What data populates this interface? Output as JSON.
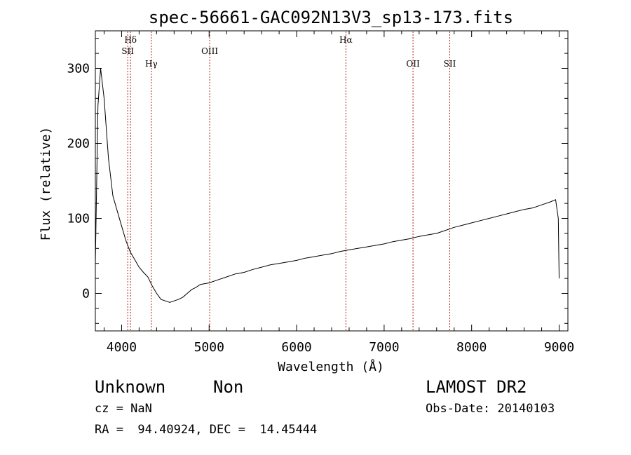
{
  "chart_data": {
    "type": "line",
    "title": "spec-56661-GAC092N13V3_sp13-173.fits",
    "xlabel": "Wavelength (Å)",
    "ylabel": "Flux (relative)",
    "xlim": [
      3700,
      9100
    ],
    "ylim": [
      -50,
      350
    ],
    "x_ticks": [
      4000,
      5000,
      6000,
      7000,
      8000,
      9000
    ],
    "y_ticks": [
      0,
      100,
      200,
      300
    ],
    "line_color": "#000000",
    "marker_color": "#b22222",
    "lines": [
      {
        "label": "Hδ",
        "x": 4102
      },
      {
        "label": "SII",
        "x": 4070
      },
      {
        "label": "Hγ",
        "x": 4340
      },
      {
        "label": "OIII",
        "x": 5007
      },
      {
        "label": "Hα",
        "x": 6563
      },
      {
        "label": "OII",
        "x": 7330
      },
      {
        "label": "SII",
        "x": 7750
      }
    ],
    "series": [
      {
        "x": [
          3700,
          3730,
          3760,
          3800,
          3850,
          3900,
          3950,
          4000,
          4050,
          4100,
          4150,
          4200,
          4250,
          4300,
          4350,
          4400,
          4450,
          4500,
          4550,
          4600,
          4650,
          4700,
          4750,
          4800,
          4850,
          4900,
          5000,
          5100,
          5200,
          5300,
          5400,
          5500,
          5600,
          5700,
          5800,
          5900,
          6000,
          6100,
          6200,
          6300,
          6400,
          6500,
          6600,
          6700,
          6800,
          6900,
          7000,
          7100,
          7200,
          7300,
          7400,
          7500,
          7600,
          7700,
          7800,
          7900,
          8000,
          8100,
          8200,
          8300,
          8400,
          8500,
          8600,
          8700,
          8800,
          8900,
          8960,
          8990,
          9000
        ],
        "y": [
          40,
          250,
          300,
          260,
          180,
          130,
          110,
          90,
          70,
          55,
          45,
          35,
          28,
          22,
          10,
          0,
          -8,
          -10,
          -12,
          -10,
          -8,
          -5,
          0,
          5,
          8,
          12,
          14,
          18,
          22,
          26,
          28,
          32,
          35,
          38,
          40,
          42,
          44,
          47,
          49,
          51,
          53,
          56,
          58,
          60,
          62,
          64,
          66,
          69,
          71,
          73,
          76,
          78,
          80,
          84,
          88,
          91,
          94,
          97,
          100,
          103,
          106,
          109,
          112,
          114,
          118,
          122,
          125,
          100,
          20
        ]
      }
    ]
  },
  "info": {
    "object_class": "Unknown",
    "subclass": "Non",
    "survey": "LAMOST DR2",
    "cz": "cz = NaN",
    "obs_date": "Obs-Date: 20140103",
    "coords": "RA =  94.40924, DEC =  14.45444"
  }
}
